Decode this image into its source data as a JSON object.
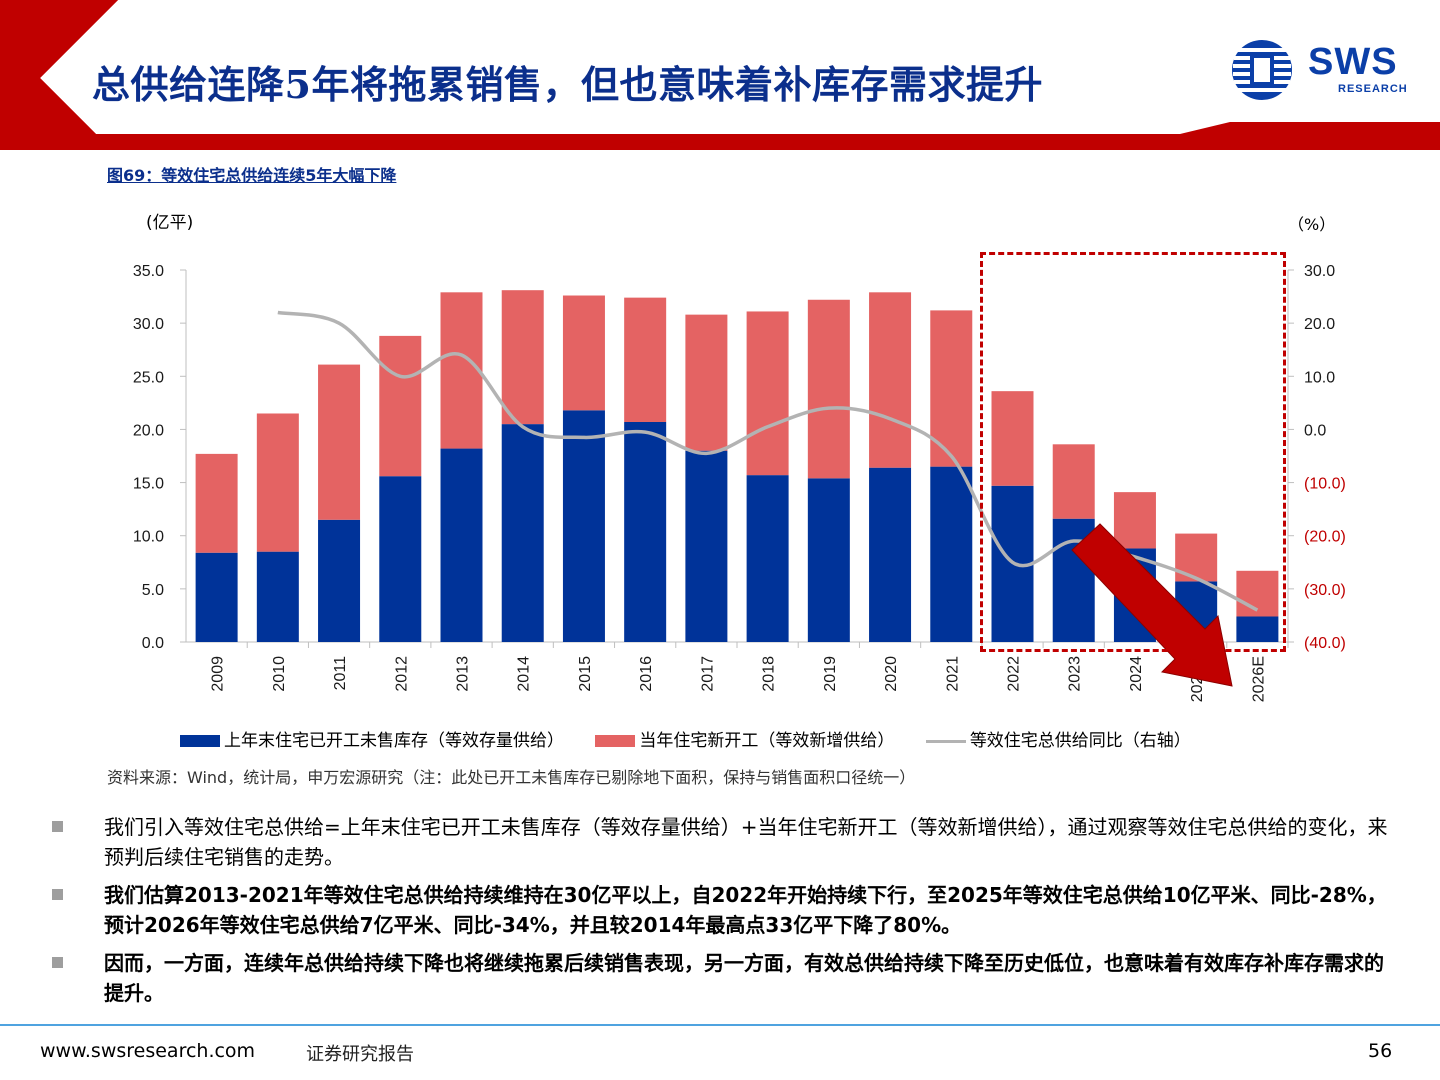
{
  "header": {
    "title": "总供给连降5年将拖累销售，但也意味着补库存需求提升",
    "logo_text": "SWS",
    "logo_sub": "RESEARCH"
  },
  "figure": {
    "caption": "图69：等效住宅总供给连续5年大幅下降",
    "source": "资料来源：Wind，统计局，申万宏源研究（注：此处已开工未售库存已剔除地下面积，保持与销售面积口径统一）"
  },
  "chart_data": {
    "type": "bar",
    "stacked": true,
    "categories": [
      "2009",
      "2010",
      "2011",
      "2012",
      "2013",
      "2014",
      "2015",
      "2016",
      "2017",
      "2018",
      "2019",
      "2020",
      "2021",
      "2022",
      "2023",
      "2024",
      "2025E",
      "2026E"
    ],
    "series": [
      {
        "name": "上年末住宅已开工未售库存（等效存量供给）",
        "type": "bar",
        "axis": "left",
        "color": "#003399",
        "values": [
          8.4,
          8.5,
          11.5,
          15.6,
          18.2,
          20.5,
          21.8,
          20.7,
          18.0,
          15.7,
          15.4,
          16.4,
          16.5,
          14.7,
          11.6,
          8.8,
          5.7,
          2.4
        ]
      },
      {
        "name": "当年住宅新开工（等效新增供给）",
        "type": "bar",
        "axis": "left",
        "color": "#e46363",
        "values": [
          9.3,
          13.0,
          14.6,
          13.2,
          14.7,
          12.6,
          10.8,
          11.7,
          12.8,
          15.4,
          16.8,
          16.5,
          14.7,
          8.9,
          7.0,
          5.3,
          4.5,
          4.3
        ]
      },
      {
        "name": "等效住宅总供给同比（右轴）",
        "type": "line",
        "axis": "right",
        "color": "#b3b3b3",
        "values": [
          null,
          22.0,
          20.0,
          10.0,
          14.0,
          0.5,
          -1.5,
          -0.5,
          -4.5,
          0.5,
          4.0,
          2.0,
          -5.0,
          -25.0,
          -21.0,
          -24.0,
          -28.0,
          -34.0
        ]
      }
    ],
    "y_left": {
      "label": "(亿平)",
      "min": 0,
      "max": 35,
      "ticks": [
        "0.0",
        "5.0",
        "10.0",
        "15.0",
        "20.0",
        "25.0",
        "30.0",
        "35.0"
      ]
    },
    "y_right": {
      "label": "（%）",
      "min": -40,
      "max": 30,
      "ticks": [
        "(40.0)",
        "(30.0)",
        "(20.0)",
        "(10.0)",
        "0.0",
        "10.0",
        "20.0",
        "30.0"
      ]
    },
    "highlight_range": [
      "2022",
      "2026E"
    ]
  },
  "bullets": [
    {
      "text": "我们引入等效住宅总供给=上年末住宅已开工未售库存（等效存量供给）+当年住宅新开工（等效新增供给），通过观察等效住宅总供给的变化，来预判后续住宅销售的走势。",
      "bold": false
    },
    {
      "text": "我们估算2013-2021年等效住宅总供给持续维持在30亿平以上，自2022年开始持续下行，至2025年等效住宅总供给10亿平米、同比-28%，预计2026年等效住宅总供给7亿平米、同比-34%，并且较2014年最高点33亿平下降了80%。",
      "bold": true
    },
    {
      "text": "因而，一方面，连续年总供给持续下降也将继续拖累后续销售表现，另一方面，有效总供给持续下降至历史低位，也意味着有效库存补库存需求的提升。",
      "bold": true
    }
  ],
  "footer": {
    "url": "www.swsresearch.com",
    "doc_type": "证券研究报告",
    "page": "56"
  }
}
